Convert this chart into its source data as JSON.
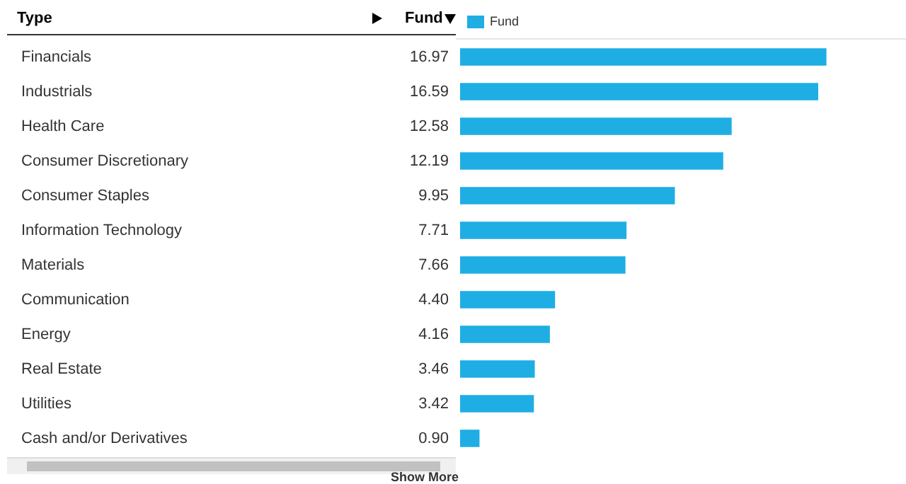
{
  "chart_data": {
    "type": "bar",
    "orientation": "horizontal",
    "ylabel": "Type",
    "xlabel": "Fund",
    "legend": "top left",
    "categories": [
      "Financials",
      "Industrials",
      "Health Care",
      "Consumer Discretionary",
      "Consumer Staples",
      "Information Technology",
      "Materials",
      "Communication",
      "Energy",
      "Real Estate",
      "Utilities",
      "Cash and/or Derivatives"
    ],
    "series": [
      {
        "name": "Fund",
        "color": "#1eaee3",
        "values": [
          16.97,
          16.59,
          12.58,
          12.19,
          9.95,
          7.71,
          7.66,
          4.4,
          4.16,
          3.46,
          3.42,
          0.9
        ],
        "value_labels": [
          "16.97",
          "16.59",
          "12.58",
          "12.19",
          "9.95",
          "7.71",
          "7.66",
          "4.40",
          "4.16",
          "3.46",
          "3.42",
          "0.90"
        ]
      }
    ],
    "annotations": [
      "Show More"
    ]
  }
}
